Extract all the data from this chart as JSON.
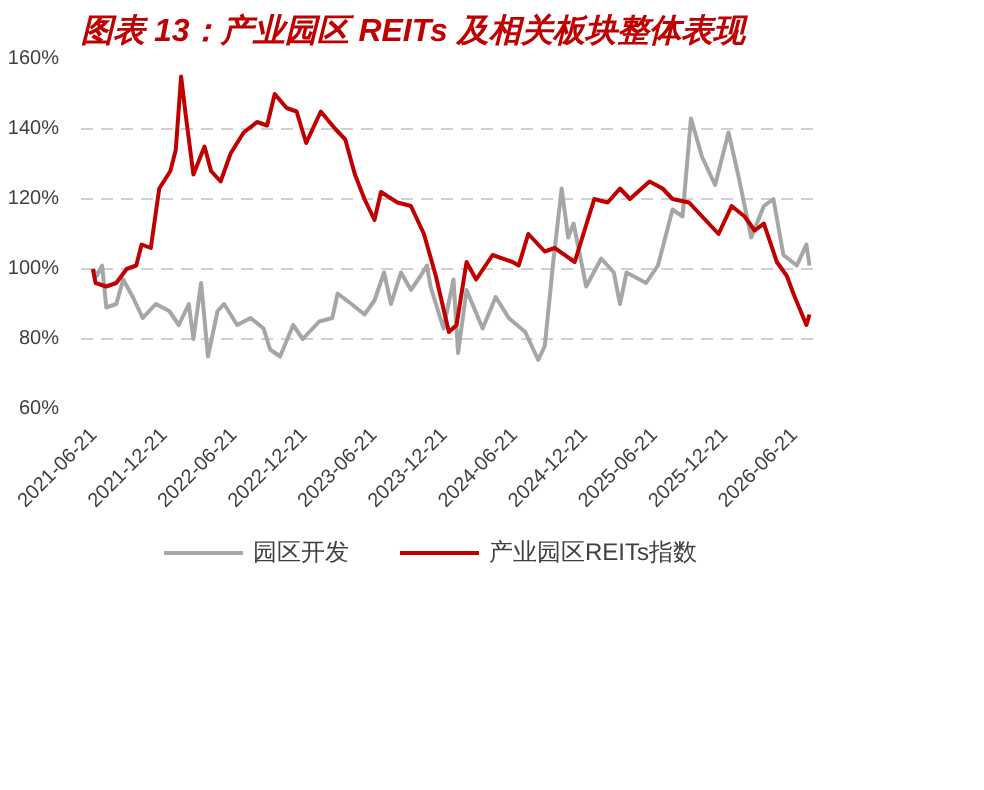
{
  "chart_data": {
    "type": "line",
    "title": "图表 13：产业园区 REITs 及相关板块整体表现",
    "xlim": [
      "2021-05-21",
      "2026-09-01"
    ],
    "xticks": [
      {
        "value": "2021-06-21",
        "label": "2021-06-21"
      },
      {
        "value": "2021-12-21",
        "label": "2021-12-21"
      },
      {
        "value": "2022-06-21",
        "label": "2022-06-21"
      },
      {
        "value": "2022-12-21",
        "label": "2022-12-21"
      },
      {
        "value": "2023-06-21",
        "label": "2023-06-21"
      },
      {
        "value": "2023-12-21",
        "label": "2023-12-21"
      },
      {
        "value": "2024-06-21",
        "label": "2024-06-21"
      },
      {
        "value": "2024-12-21",
        "label": "2024-12-21"
      },
      {
        "value": "2025-06-21",
        "label": "2025-06-21"
      },
      {
        "value": "2025-12-21",
        "label": "2025-12-21"
      },
      {
        "value": "2026-06-21",
        "label": "2026-06-21"
      }
    ],
    "ylim": [
      60,
      160
    ],
    "yticks": [
      {
        "value": 60,
        "label": "60%"
      },
      {
        "value": 80,
        "label": "80%"
      },
      {
        "value": 100,
        "label": "100%"
      },
      {
        "value": 120,
        "label": "120%"
      },
      {
        "value": 140,
        "label": "140%"
      },
      {
        "value": 160,
        "label": "160%"
      }
    ],
    "grid": "y",
    "legend": "bottom",
    "marker": "none",
    "line_style": "solid",
    "series": [
      {
        "name": "园区开发",
        "color": "#a6a6a6",
        "x": [
          "2021-06-21",
          "2021-07-01",
          "2021-07-15",
          "2021-07-26",
          "2021-08-21",
          "2021-09-08",
          "2021-10-03",
          "2021-10-29",
          "2021-12-02",
          "2022-01-06",
          "2022-01-31",
          "2022-02-26",
          "2022-03-10",
          "2022-03-30",
          "2022-04-17",
          "2022-05-12",
          "2022-05-29",
          "2022-07-02",
          "2022-08-06",
          "2022-09-09",
          "2022-09-26",
          "2022-10-22",
          "2022-11-25",
          "2022-12-20",
          "2023-02-01",
          "2023-03-07",
          "2023-03-21",
          "2023-04-26",
          "2023-05-30",
          "2023-06-25",
          "2023-07-20",
          "2023-08-07",
          "2023-09-02",
          "2023-09-28",
          "2023-10-23",
          "2023-11-09",
          "2023-11-18",
          "2023-12-22",
          "2024-01-17",
          "2024-01-29",
          "2024-02-20",
          "2024-04-02",
          "2024-05-06",
          "2024-06-09",
          "2024-07-22",
          "2024-08-25",
          "2024-09-11",
          "2024-10-04",
          "2024-10-25",
          "2024-11-11",
          "2024-11-25",
          "2024-12-28",
          "2025-02-05",
          "2025-03-10",
          "2025-03-26",
          "2025-04-12",
          "2025-06-02",
          "2025-07-03",
          "2025-08-10",
          "2025-09-05",
          "2025-09-27",
          "2025-10-26",
          "2025-11-29",
          "2026-01-03",
          "2026-01-28",
          "2026-03-03",
          "2026-04-05",
          "2026-04-30",
          "2026-05-26",
          "2026-06-30",
          "2026-07-25",
          "2026-08-02"
        ],
        "values": [
          100,
          98,
          101,
          89,
          90,
          97,
          92,
          86,
          90,
          88,
          84,
          90,
          80,
          96,
          75,
          88,
          90,
          84,
          86,
          83,
          77,
          75,
          84,
          80,
          85,
          86,
          93,
          90,
          87,
          91,
          99,
          90,
          99,
          94,
          98,
          101,
          95,
          83,
          97,
          76,
          94,
          83,
          92,
          86,
          82,
          74,
          78,
          103,
          123,
          109,
          113,
          95,
          103,
          99,
          90,
          99,
          96,
          101,
          117,
          115,
          143,
          132,
          124,
          139,
          127,
          109,
          118,
          120,
          104,
          101,
          107,
          101
        ]
      },
      {
        "name": "产业园区REITs指数",
        "color": "#c00000",
        "x": [
          "2021-06-21",
          "2021-06-28",
          "2021-07-26",
          "2021-08-21",
          "2021-09-17",
          "2021-10-12",
          "2021-10-26",
          "2021-11-19",
          "2021-12-11",
          "2022-01-09",
          "2022-01-23",
          "2022-02-06",
          "2022-02-18",
          "2022-03-10",
          "2022-04-08",
          "2022-04-25",
          "2022-05-20",
          "2022-06-15",
          "2022-07-19",
          "2022-08-23",
          "2022-09-18",
          "2022-10-08",
          "2022-11-08",
          "2022-12-04",
          "2022-12-29",
          "2023-02-05",
          "2023-03-15",
          "2023-04-10",
          "2023-05-05",
          "2023-05-30",
          "2023-06-25",
          "2023-07-12",
          "2023-08-24",
          "2023-09-28",
          "2023-11-01",
          "2023-12-02",
          "2024-01-05",
          "2024-01-25",
          "2024-02-20",
          "2024-03-16",
          "2024-04-28",
          "2024-06-19",
          "2024-07-05",
          "2024-07-30",
          "2024-09-11",
          "2024-10-07",
          "2024-11-28",
          "2025-01-18",
          "2025-02-22",
          "2025-03-26",
          "2025-04-21",
          "2025-06-11",
          "2025-07-15",
          "2025-08-10",
          "2025-09-22",
          "2025-12-08",
          "2026-01-11",
          "2026-02-14",
          "2026-03-12",
          "2026-04-05",
          "2026-05-09",
          "2026-06-04",
          "2026-06-21",
          "2026-07-25",
          "2026-08-02"
        ],
        "values": [
          100,
          96,
          95,
          96,
          100,
          101,
          107,
          106,
          123,
          128,
          134,
          155,
          144,
          127,
          135,
          128,
          125,
          133,
          139,
          142,
          141,
          150,
          146,
          145,
          136,
          145,
          140,
          137,
          127,
          120,
          114,
          122,
          119,
          118,
          110,
          98,
          82,
          84,
          102,
          97,
          104,
          102,
          101,
          110,
          105,
          106,
          102,
          120,
          119,
          123,
          120,
          125,
          123,
          120,
          119,
          110,
          118,
          115,
          111,
          113,
          102,
          98,
          93,
          84,
          87
        ]
      }
    ]
  }
}
